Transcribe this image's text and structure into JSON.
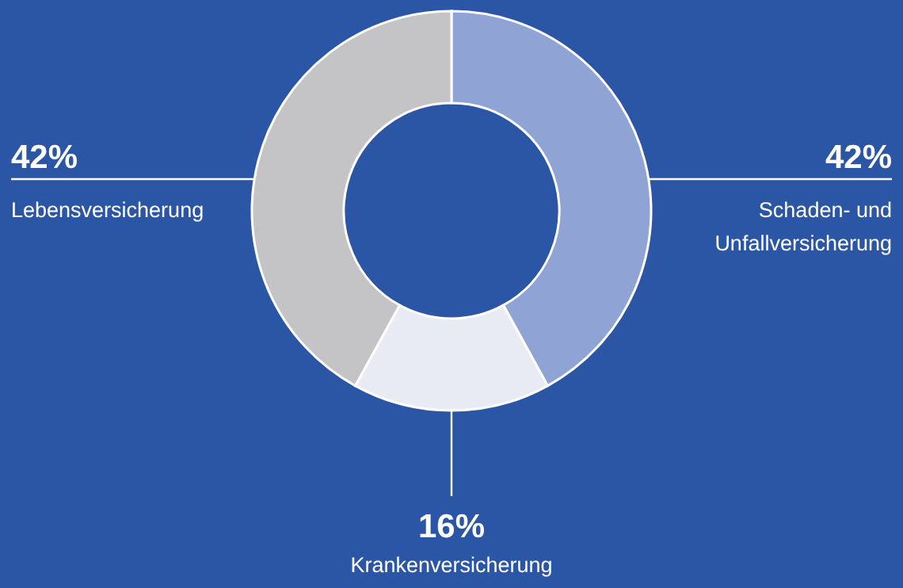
{
  "chart_data": {
    "type": "donut",
    "categories": [
      "Schaden- und Unfallversicherung",
      "Krankenversicherung",
      "Lebensversicherung"
    ],
    "values": [
      42,
      16,
      42
    ],
    "colors": [
      "#8fa3d4",
      "#e8ebf4",
      "#c4c4c6"
    ],
    "value_labels": [
      "42%",
      "16%",
      "42%"
    ]
  }
}
